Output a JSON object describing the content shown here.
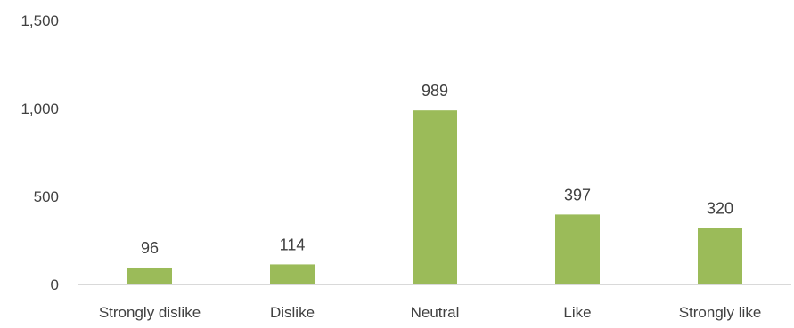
{
  "chart_data": {
    "type": "bar",
    "title": "",
    "xlabel": "",
    "ylabel": "",
    "categories": [
      "Strongly dislike",
      "Dislike",
      "Neutral",
      "Like",
      "Strongly like"
    ],
    "values": [
      96,
      114,
      989,
      397,
      320
    ],
    "data_labels": [
      "96",
      "114",
      "989",
      "397",
      "320"
    ],
    "ylim": [
      0,
      1500
    ],
    "y_ticks": [
      0,
      500,
      1000,
      1500
    ],
    "y_tick_labels": [
      "0",
      "500",
      "1,000",
      "1,500"
    ],
    "grid": false,
    "legend": "none",
    "bar_color": "#9bbb59",
    "axis_color": "#d9d9d9"
  }
}
